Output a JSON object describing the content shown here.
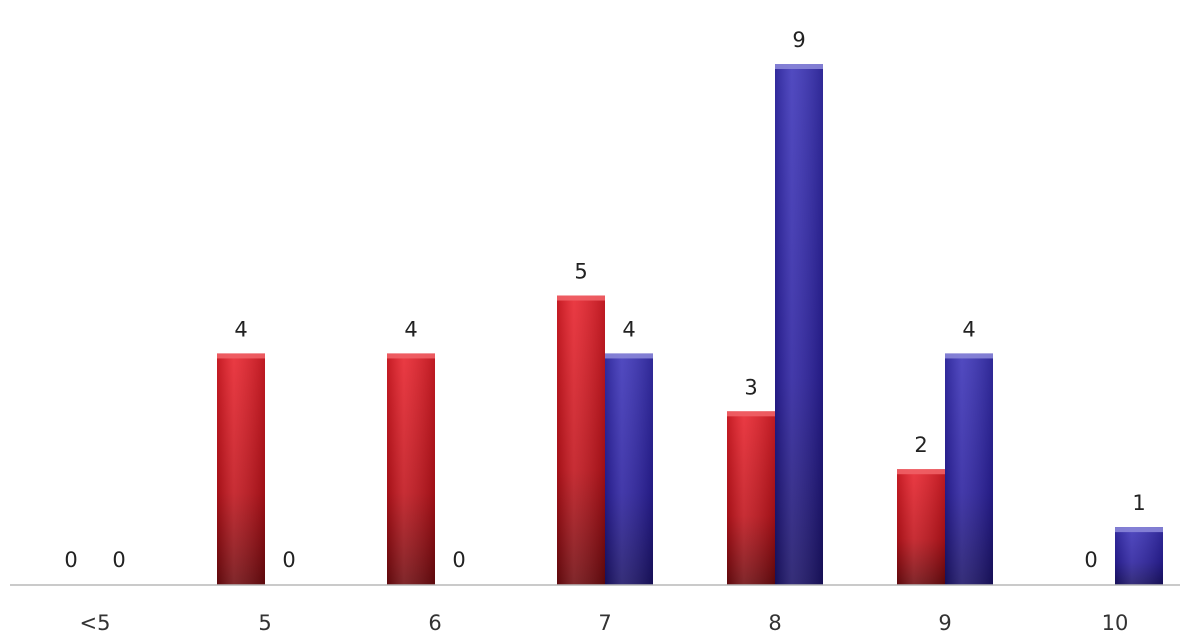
{
  "chart_data": {
    "type": "bar",
    "categories": [
      "<5",
      "5",
      "6",
      "7",
      "8",
      "9",
      "10"
    ],
    "series": [
      {
        "color": "#c8141c",
        "values": [
          0,
          4,
          4,
          5,
          3,
          2,
          0
        ]
      },
      {
        "color": "#2a1f9e",
        "values": [
          0,
          0,
          0,
          4,
          9,
          4,
          1
        ]
      }
    ],
    "ylim": [
      0,
      9
    ],
    "grid": false,
    "legend": "none",
    "data_labels": true
  }
}
